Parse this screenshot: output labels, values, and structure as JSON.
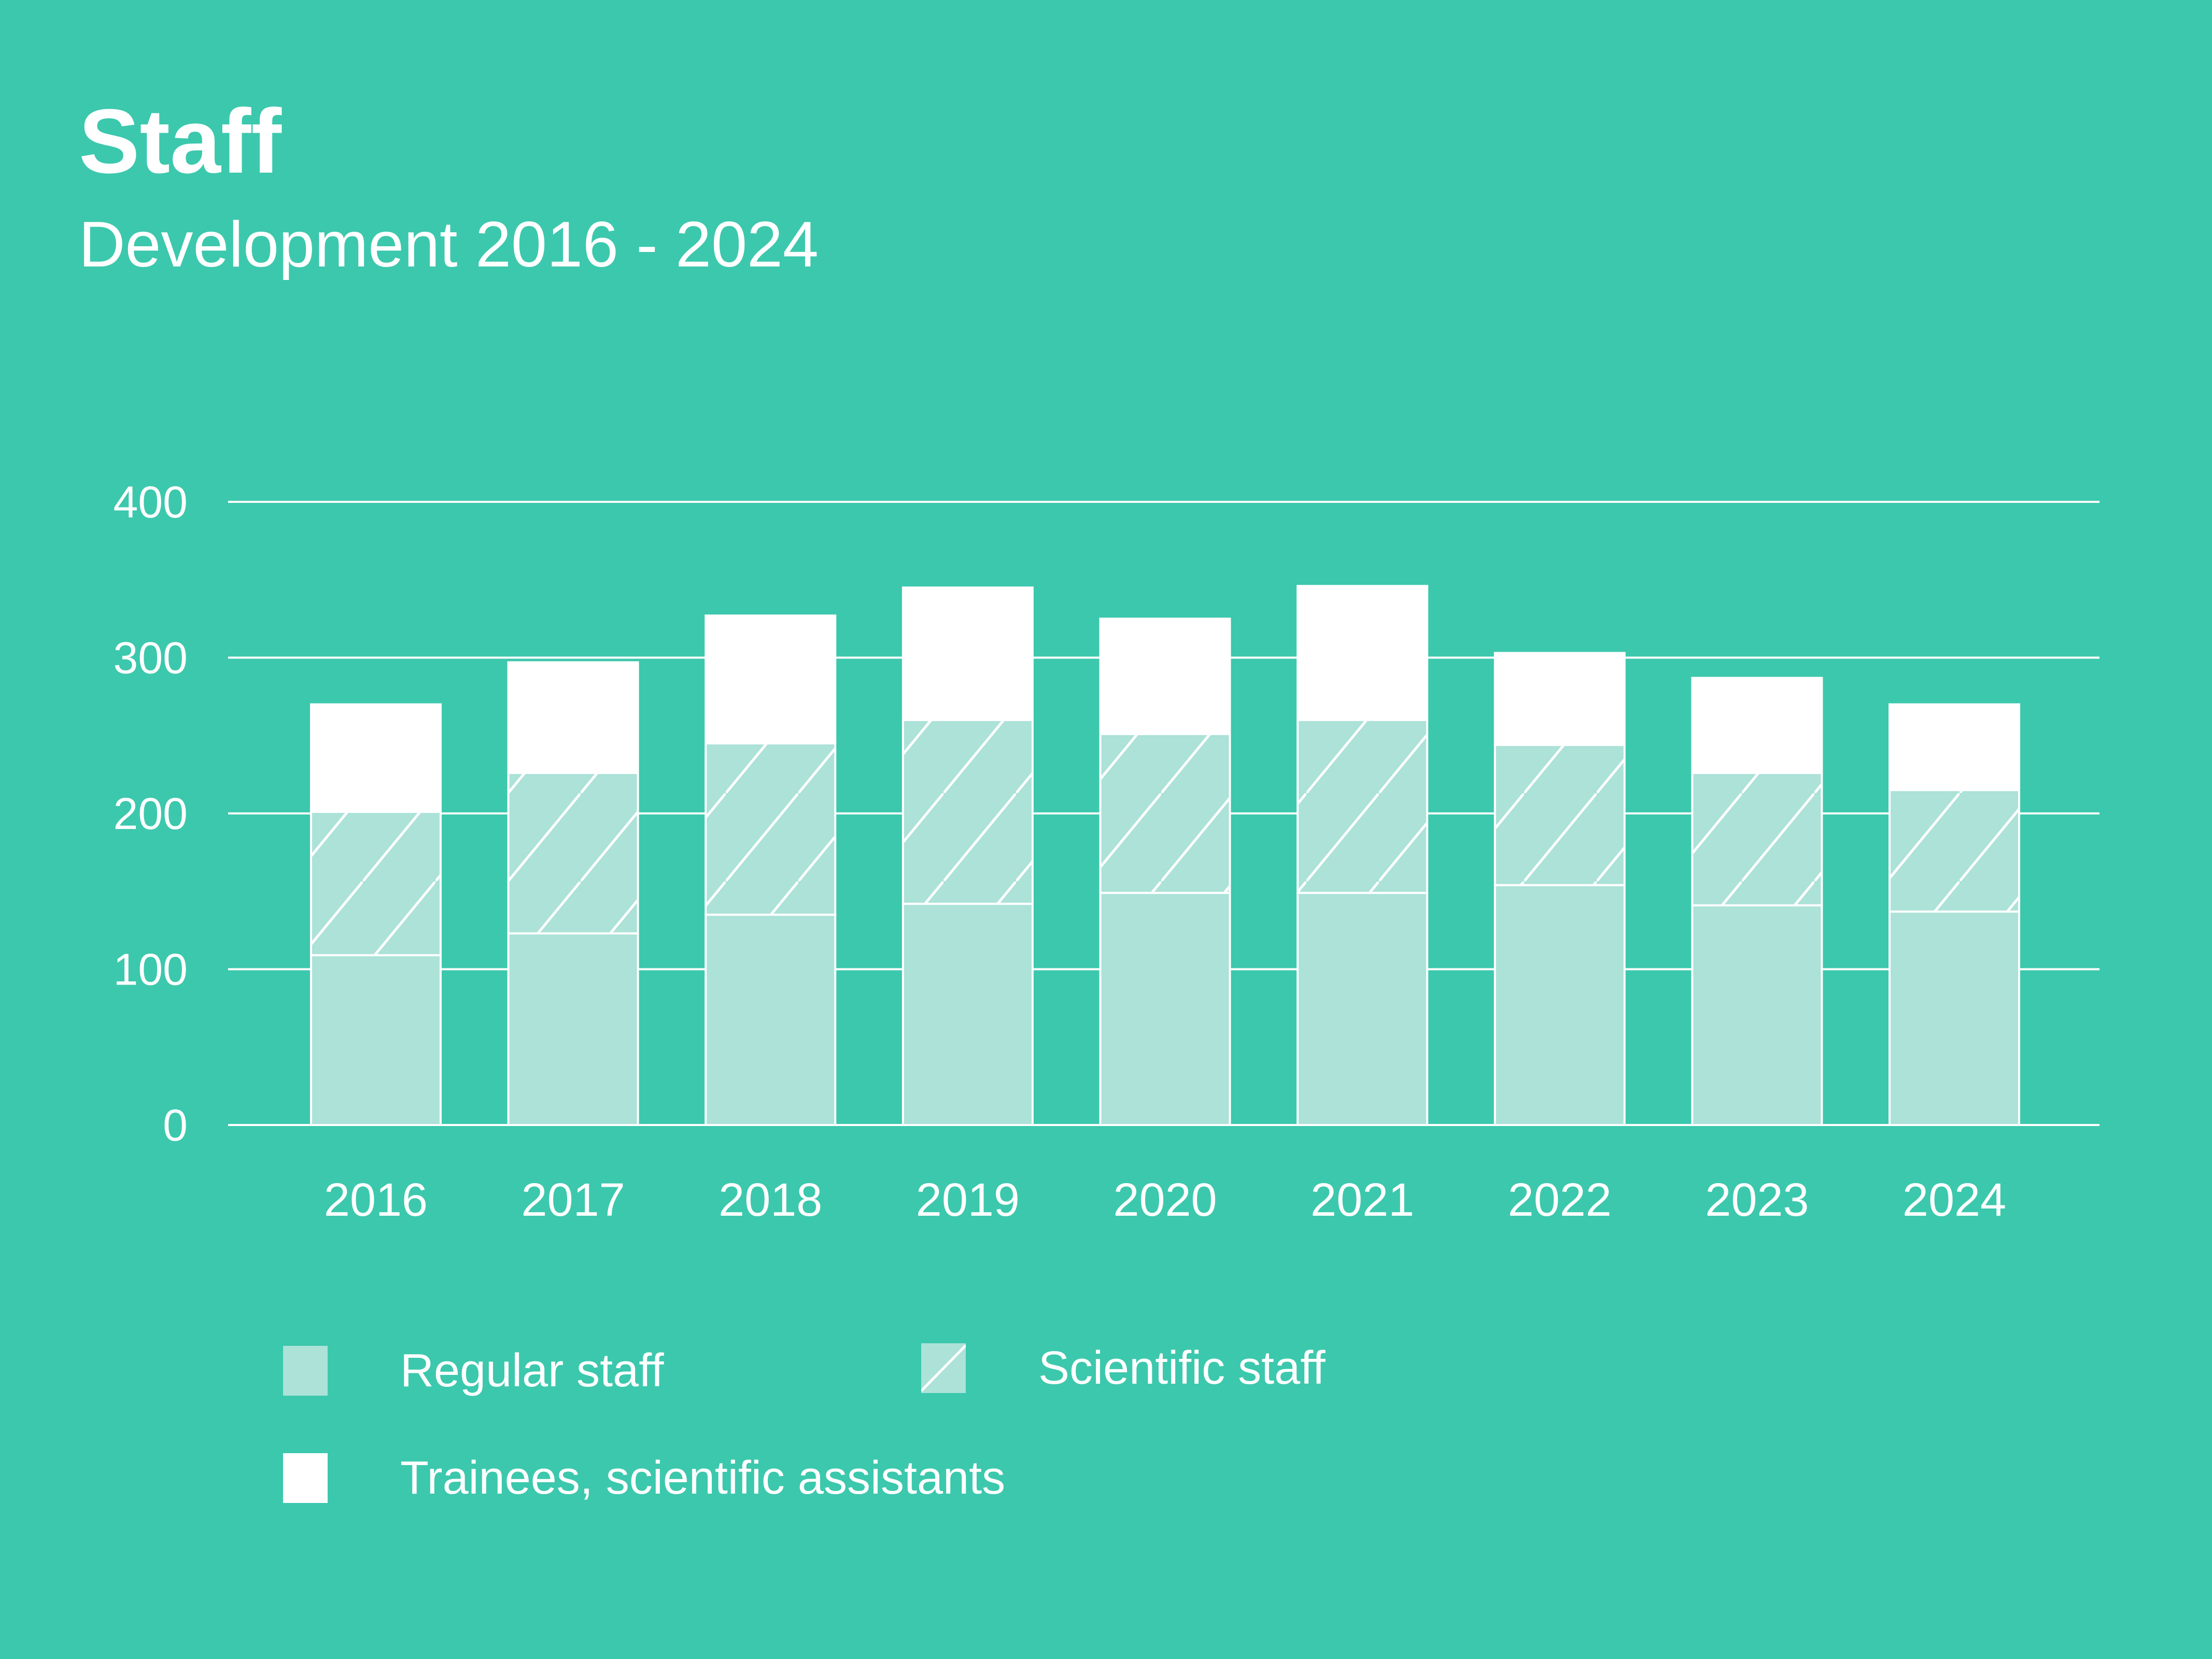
{
  "title": "Staff",
  "subtitle": "Development 2016 - 2024",
  "colors": {
    "background": "#3cc8ad",
    "regular": "#ace2d8",
    "scientific": "#ace2d8",
    "trainees": "#ffffff",
    "grid": "#ffffff"
  },
  "legend": {
    "regular": "Regular staff",
    "scientific": "Scientific staff",
    "trainees": "Trainees, scientific assistants"
  },
  "chart_data": {
    "type": "bar",
    "stacked": true,
    "title": "Staff",
    "subtitle": "Development 2016 - 2024",
    "xlabel": "",
    "ylabel": "",
    "ylim": [
      0,
      400
    ],
    "yticks": [
      0,
      100,
      200,
      300,
      400
    ],
    "grid": true,
    "legend_position": "bottom",
    "categories": [
      "2016",
      "2017",
      "2018",
      "2019",
      "2020",
      "2021",
      "2022",
      "2023",
      "2024"
    ],
    "series": [
      {
        "name": "Regular staff",
        "values": [
          109,
          123,
          135,
          142,
          149,
          149,
          154,
          141,
          137
        ]
      },
      {
        "name": "Scientific staff",
        "values": [
          92,
          103,
          110,
          118,
          102,
          111,
          90,
          85,
          78
        ]
      },
      {
        "name": "Trainees, scientific assistants",
        "values": [
          69,
          71,
          82,
          85,
          74,
          86,
          59,
          61,
          55
        ]
      }
    ]
  }
}
